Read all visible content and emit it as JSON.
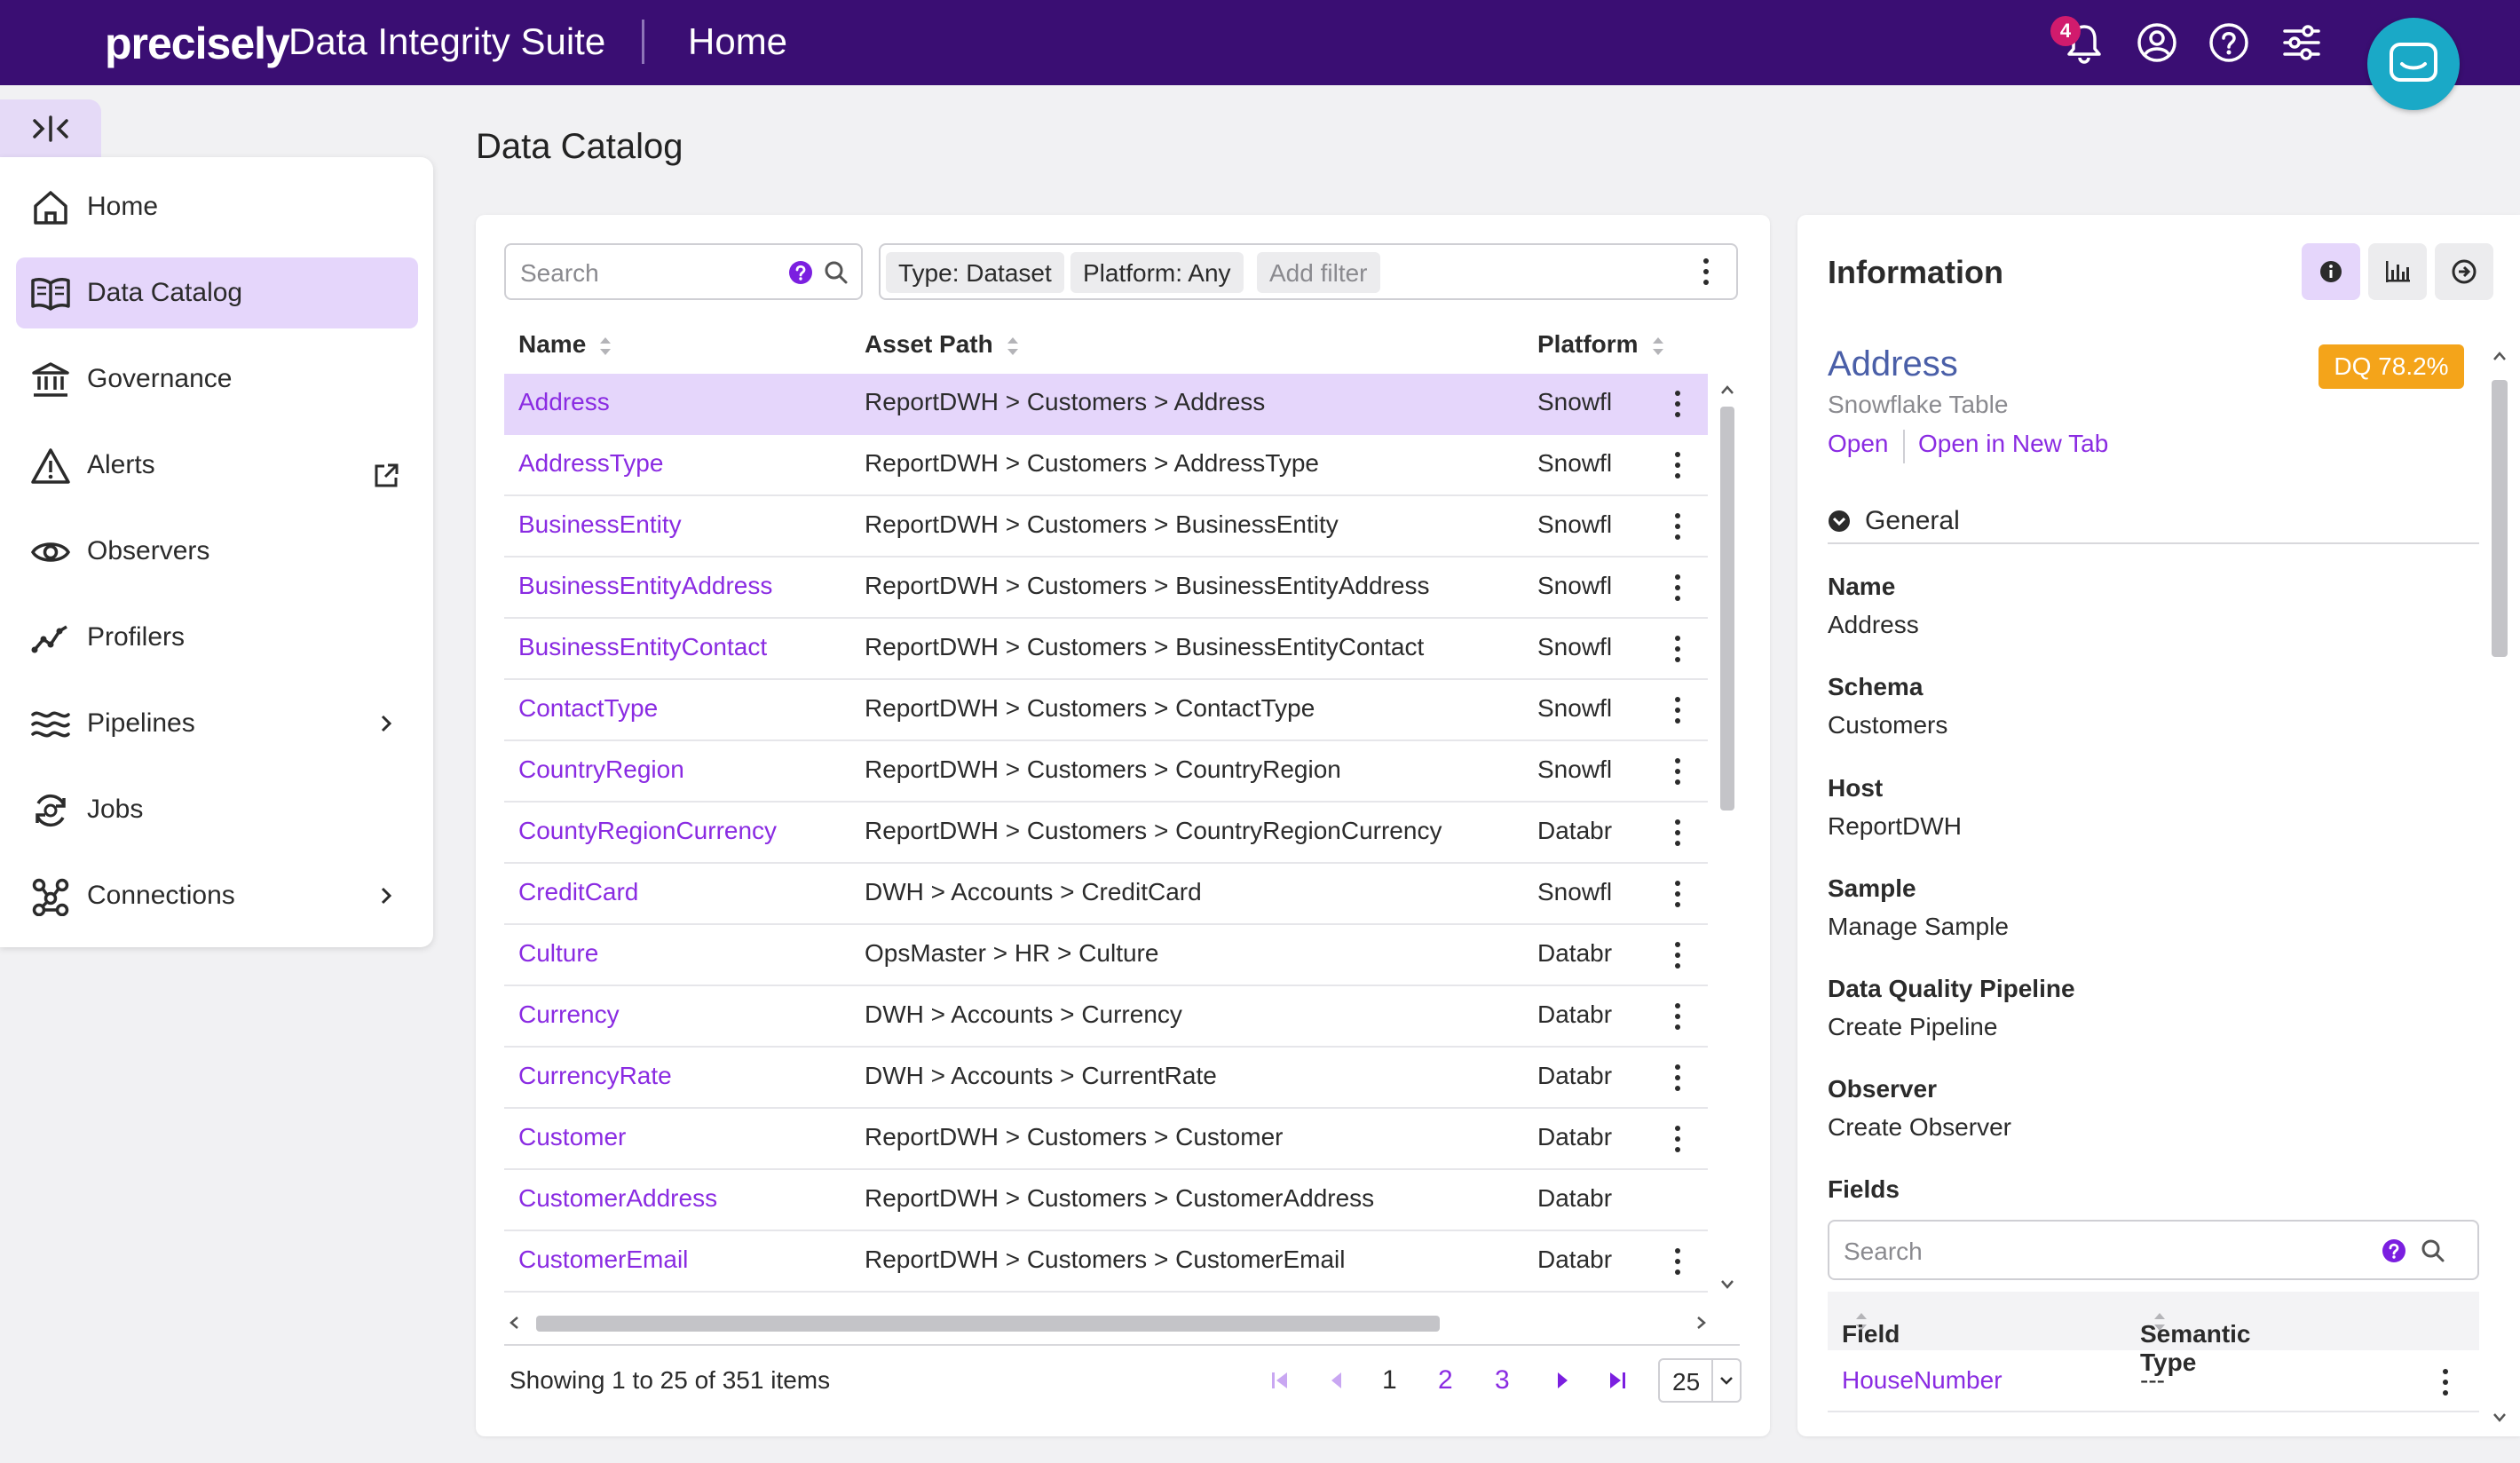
{
  "header": {
    "brand": "precisely",
    "suite": "Data Integrity Suite",
    "page": "Home",
    "notification_count": "4",
    "icons": [
      "bell-icon",
      "user-icon",
      "help-icon",
      "settings-sliders-icon",
      "chat-icon"
    ]
  },
  "sidebar": {
    "items": [
      {
        "label": "Home",
        "icon": "home-icon"
      },
      {
        "label": "Data Catalog",
        "icon": "book-icon",
        "active": true
      },
      {
        "label": "Governance",
        "icon": "bank-icon"
      },
      {
        "label": "Alerts",
        "icon": "warning-icon",
        "external": true
      },
      {
        "label": "Observers",
        "icon": "eye-icon"
      },
      {
        "label": "Profilers",
        "icon": "trend-icon"
      },
      {
        "label": "Pipelines",
        "icon": "waves-icon",
        "submenu": true
      },
      {
        "label": "Jobs",
        "icon": "jobs-icon"
      },
      {
        "label": "Connections",
        "icon": "network-icon",
        "submenu": true
      }
    ]
  },
  "main": {
    "title": "Data Catalog",
    "search_placeholder": "Search",
    "filters": [
      "Type: Dataset",
      "Platform: Any"
    ],
    "add_filter": "Add filter",
    "columns": [
      "Name",
      "Asset Path",
      "Platform"
    ],
    "rows": [
      {
        "name": "Address",
        "path": "ReportDWH  >  Customers  >  Address",
        "platform": "Snowfl",
        "selected": true
      },
      {
        "name": "AddressType",
        "path": "ReportDWH  >  Customers  >  AddressType",
        "platform": "Snowfl"
      },
      {
        "name": "BusinessEntity",
        "path": "ReportDWH  >  Customers  >  BusinessEntity",
        "platform": "Snowfl"
      },
      {
        "name": "BusinessEntityAddress",
        "path": "ReportDWH  >  Customers  >  BusinessEntityAddress",
        "platform": "Snowfl"
      },
      {
        "name": "BusinessEntityContact",
        "path": "ReportDWH  >  Customers  >  BusinessEntityContact",
        "platform": "Snowfl"
      },
      {
        "name": "ContactType",
        "path": "ReportDWH  >  Customers  >  ContactType",
        "platform": "Snowfl"
      },
      {
        "name": "CountryRegion",
        "path": "ReportDWH  >  Customers  >  CountryRegion",
        "platform": "Snowfl"
      },
      {
        "name": "CountyRegionCurrency",
        "path": "ReportDWH  >  Customers  >  CountryRegionCurrency",
        "platform": "Databr"
      },
      {
        "name": "CreditCard",
        "path": "DWH > Accounts  >  CreditCard",
        "platform": "Snowfl"
      },
      {
        "name": "Culture",
        "path": "OpsMaster > HR  >  Culture",
        "platform": "Databr"
      },
      {
        "name": "Currency",
        "path": "DWH > Accounts  >  Currency",
        "platform": "Databr"
      },
      {
        "name": "CurrencyRate",
        "path": "DWH > Accounts  >  CurrentRate",
        "platform": "Databr"
      },
      {
        "name": "Customer",
        "path": "ReportDWH  >  Customers  >  Customer",
        "platform": "Databr"
      },
      {
        "name": "CustomerAddress",
        "path": "ReportDWH  >  Customers  >  CustomerAddress",
        "platform": "Databr",
        "no_menu": true
      },
      {
        "name": "CustomerEmail",
        "path": "ReportDWH  >  Customers  >  CustomerEmail",
        "platform": "Databr"
      }
    ],
    "showing": "Showing 1 to 25 of 351 items",
    "pages": [
      "1",
      "2",
      "3"
    ],
    "current_page": "1",
    "per_page": "25"
  },
  "info": {
    "title": "Information",
    "asset_name": "Address",
    "dq": "DQ 78.2%",
    "asset_type": "Snowflake Table",
    "open": "Open",
    "open_new_tab": "Open in New Tab",
    "section": "General",
    "props": [
      {
        "label": "Name",
        "value": "Address",
        "link": false
      },
      {
        "label": "Schema",
        "value": "Customers",
        "link": false
      },
      {
        "label": "Host",
        "value": "ReportDWH",
        "link": false
      },
      {
        "label": "Sample",
        "value": "Manage Sample",
        "link": true
      },
      {
        "label": "Data Quality Pipeline",
        "value": "Create Pipeline",
        "link": true
      },
      {
        "label": "Observer",
        "value": "Create Observer",
        "link": true
      }
    ],
    "fields_label": "Fields",
    "fields_search_placeholder": "Search",
    "fields_columns": [
      "Field",
      "Semantic Type"
    ],
    "fields_rows": [
      {
        "field": "HouseNumber",
        "semantic": "---"
      }
    ]
  },
  "colors": {
    "header_bg": "#3a0e73",
    "accent": "#8a2be2",
    "selected_bg": "#e5d6fb",
    "dq_badge": "#f4a41a",
    "chat": "#1aa9c7"
  }
}
